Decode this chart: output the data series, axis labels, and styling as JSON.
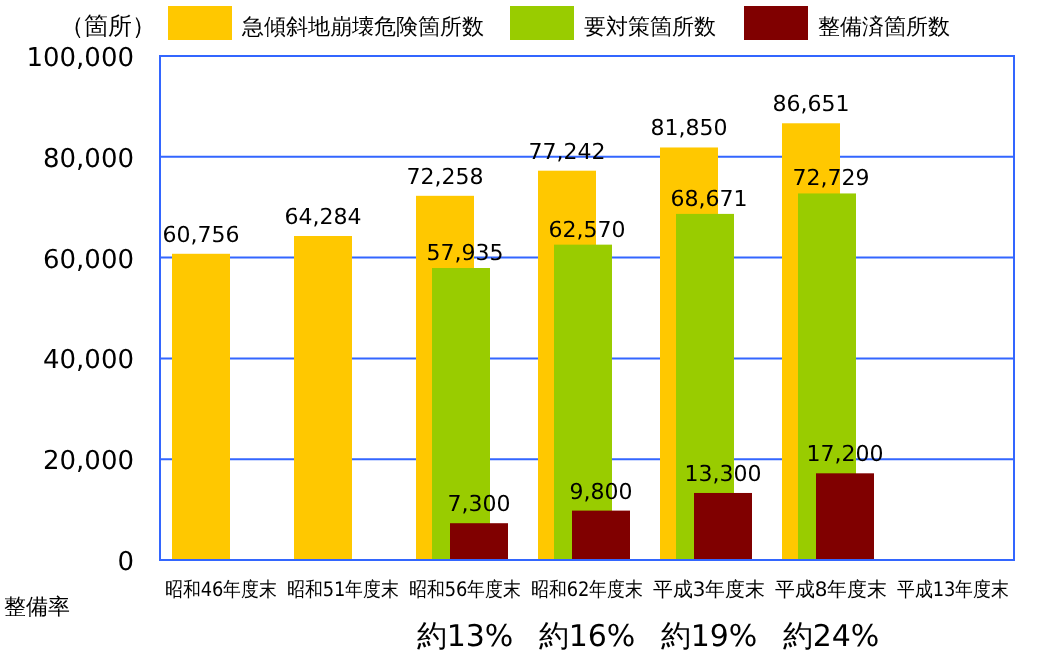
{
  "chart_data": {
    "type": "bar",
    "ylabel": "（箇所）",
    "categories": [
      "昭和46年度末",
      "昭和51年度末",
      "昭和56年度末",
      "昭和62年度末",
      "平成3年度末",
      "平成8年度末",
      "平成13年度末"
    ],
    "series": [
      {
        "name": "急傾斜地崩壊危険箇所数",
        "color": "#ffc800",
        "values": [
          60756,
          64284,
          72258,
          77242,
          81850,
          86651,
          null
        ],
        "value_labels": [
          "60,756",
          "64,284",
          "72,258",
          "77,242",
          "81,850",
          "86,651",
          null
        ]
      },
      {
        "name": "要対策箇所数",
        "color": "#99cc00",
        "values": [
          null,
          null,
          57935,
          62570,
          68671,
          72729,
          null
        ],
        "value_labels": [
          null,
          null,
          "57,935",
          "62,570",
          "68,671",
          "72,729",
          null
        ]
      },
      {
        "name": "整備済箇所数",
        "color": "#800000",
        "values": [
          null,
          null,
          7300,
          9800,
          13300,
          17200,
          null
        ],
        "value_labels": [
          null,
          null,
          "7,300",
          "9,800",
          "13,300",
          "17,200",
          null
        ]
      }
    ],
    "ylim": [
      0,
      100000
    ],
    "yticks": [
      {
        "value": 0,
        "label": "0"
      },
      {
        "value": 20000,
        "label": "20,000"
      },
      {
        "value": 40000,
        "label": "40,000"
      },
      {
        "value": 60000,
        "label": "60,000"
      },
      {
        "value": 80000,
        "label": "80,000"
      },
      {
        "value": 100000,
        "label": "100,000"
      }
    ],
    "grid": "y",
    "legend": "top",
    "annotations": [
      "整備率",
      "約13%",
      "約16%",
      "約19%",
      "約24%"
    ]
  }
}
